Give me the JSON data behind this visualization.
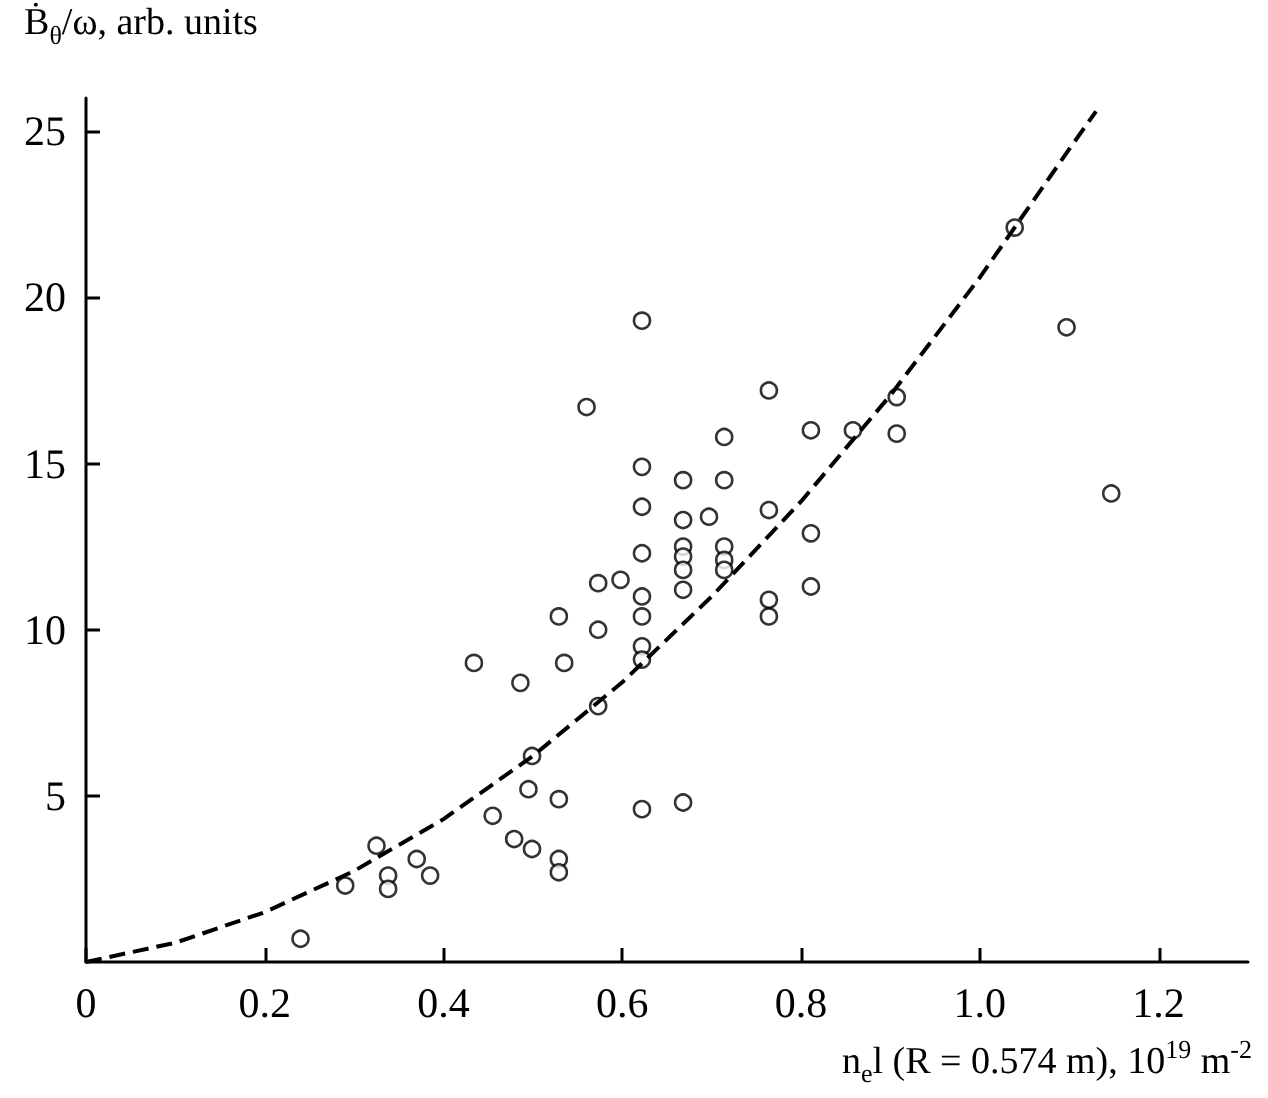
{
  "chart_data": {
    "type": "scatter",
    "xlabel": "n$_{e}$l (R = 0.574 m), 10$^{19}$ m$^{-2}$",
    "ylabel": "Ḃ$_{θ}$/ω, arb. units",
    "xlim": [
      0,
      1.3
    ],
    "ylim": [
      0,
      26
    ],
    "xticks": [
      0,
      0.2,
      0.4,
      0.6,
      0.8,
      {
        "value": 1,
        "label": "1.0"
      },
      1.2
    ],
    "yticks": [
      5,
      10,
      15,
      20,
      25
    ],
    "grid": false,
    "series": [
      {
        "marker": "circle",
        "color": "#000000",
        "x": [
          0.24,
          0.29,
          0.325,
          0.338,
          0.338,
          0.37,
          0.385,
          0.434,
          0.455,
          0.479,
          0.486,
          0.499,
          0.495,
          0.499,
          0.529,
          0.535,
          0.529,
          0.529,
          0.529,
          0.56,
          0.573,
          0.573,
          0.573,
          0.598,
          0.622,
          0.622,
          0.622,
          0.622,
          0.622,
          0.622,
          0.622,
          0.622,
          0.622,
          0.668,
          0.668,
          0.668,
          0.668,
          0.668,
          0.668,
          0.668,
          0.697,
          0.714,
          0.714,
          0.714,
          0.714,
          0.714,
          0.764,
          0.764,
          0.764,
          0.764,
          0.811,
          0.811,
          0.811,
          0.858,
          0.907,
          0.907,
          1.039,
          1.097,
          1.147
        ],
        "values": [
          0.7,
          2.3,
          3.5,
          2.6,
          2.2,
          3.1,
          2.6,
          9.0,
          4.4,
          3.7,
          8.4,
          6.2,
          5.2,
          3.4,
          10.4,
          9.0,
          4.9,
          3.1,
          2.7,
          16.7,
          11.4,
          10.0,
          7.7,
          11.5,
          19.3,
          14.9,
          13.7,
          12.3,
          11.0,
          10.4,
          9.5,
          9.1,
          4.6,
          14.5,
          13.3,
          12.5,
          12.2,
          11.8,
          11.2,
          4.8,
          13.4,
          15.8,
          14.5,
          12.5,
          12.1,
          11.8,
          17.2,
          13.6,
          10.9,
          10.4,
          16.0,
          12.9,
          11.3,
          16.0,
          17.0,
          15.9,
          22.1,
          19.1,
          14.1
        ]
      },
      {
        "type": "line",
        "marker": "none",
        "line_style": "dashed",
        "color": "#000000",
        "x": [
          0,
          0.1,
          0.2,
          0.3,
          0.4,
          0.5,
          0.6,
          0.7,
          0.8,
          0.9,
          1.0,
          1.1,
          1.13
        ],
        "values": [
          0,
          0.58,
          1.5,
          2.74,
          4.3,
          6.2,
          8.42,
          11.0,
          13.86,
          17.06,
          20.6,
          24.46,
          25.6
        ]
      }
    ]
  }
}
